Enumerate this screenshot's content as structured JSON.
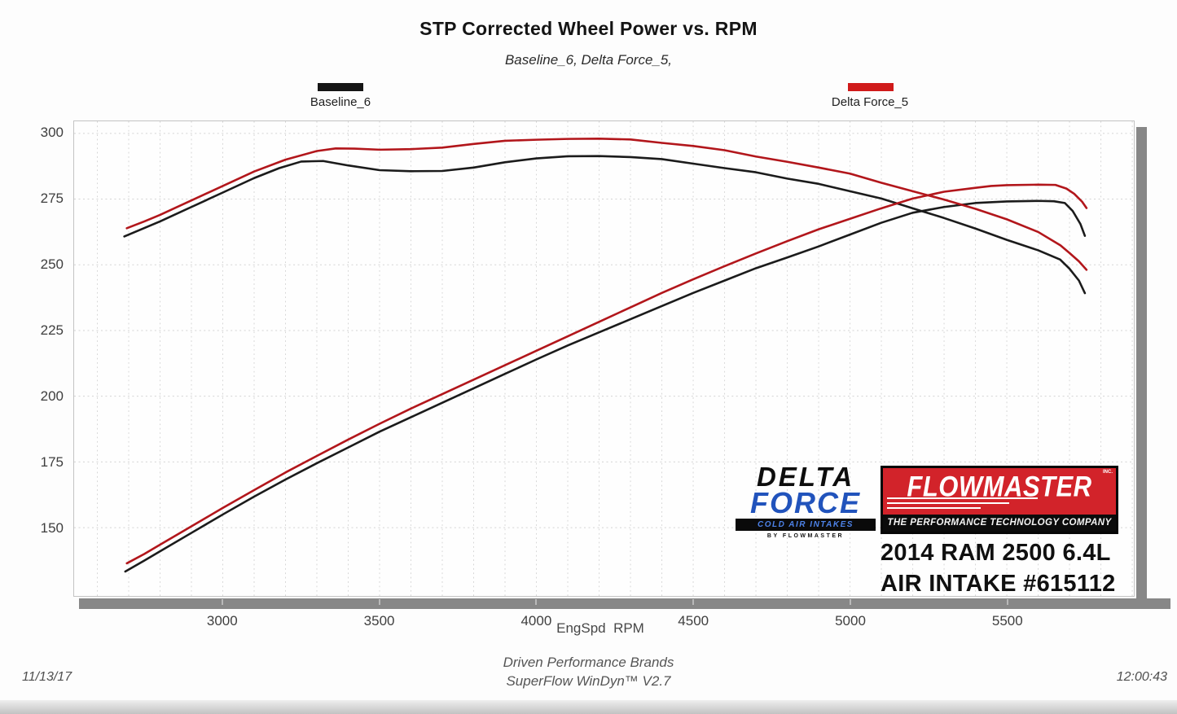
{
  "header": {
    "title": "STP Corrected Wheel Power vs. RPM",
    "subtitle": "Baseline_6, Delta Force_5,"
  },
  "legend": [
    {
      "label": "Baseline_6",
      "color": "#151515"
    },
    {
      "label": "Delta Force_5",
      "color": "#d01a1a"
    }
  ],
  "axes": {
    "x_label": "EngSpd  RPM",
    "x_ticks": [
      3000,
      3500,
      4000,
      4500,
      5000,
      5500
    ],
    "y_ticks": [
      150,
      175,
      200,
      225,
      250,
      275,
      300
    ]
  },
  "footer": {
    "line1": "Driven Performance Brands",
    "line2": "SuperFlow WinDyn™ V2.7",
    "date": "11/13/17",
    "time": "12:00:43"
  },
  "branding": {
    "delta_force": {
      "line1": "DELTA",
      "line2": "FORCE",
      "bar": "COLD AIR INTAKES",
      "sub": "BY FLOWMASTER"
    },
    "flowmaster": {
      "name": "FLOWMASTER",
      "inc": "INC.",
      "tagline": "THE PERFORMANCE TECHNOLOGY COMPANY"
    },
    "vehicle_line1": "2014 RAM 2500 6.4L",
    "vehicle_line2": "AIR INTAKE #615112"
  },
  "chart_data": {
    "type": "line",
    "title": "STP Corrected Wheel Power vs. RPM",
    "subtitle": "Baseline_6, Delta Force_5,",
    "xlabel": "EngSpd RPM",
    "ylabel": "",
    "xlim": [
      2526,
      5905
    ],
    "ylim": [
      124,
      304.6
    ],
    "x_ticks": [
      3000,
      3500,
      4000,
      4500,
      5000,
      5500
    ],
    "y_ticks": [
      150,
      175,
      200,
      225,
      250,
      275,
      300
    ],
    "x_minor_grid_step": 100,
    "grid": "dotted",
    "legend_position": "top",
    "series": [
      {
        "name": "Baseline_6 (upper trace, torque)",
        "color": "#1b1b1b",
        "points": [
          [
            2686,
            260.8
          ],
          [
            2750,
            264
          ],
          [
            2800,
            266.5
          ],
          [
            2900,
            272
          ],
          [
            3000,
            277.5
          ],
          [
            3100,
            283
          ],
          [
            3180,
            286.8
          ],
          [
            3250,
            289.3
          ],
          [
            3320,
            289.5
          ],
          [
            3400,
            287.8
          ],
          [
            3500,
            286
          ],
          [
            3600,
            285.6
          ],
          [
            3700,
            285.7
          ],
          [
            3800,
            287
          ],
          [
            3900,
            289
          ],
          [
            4000,
            290.5
          ],
          [
            4100,
            291.3
          ],
          [
            4200,
            291.4
          ],
          [
            4300,
            291
          ],
          [
            4400,
            290.2
          ],
          [
            4500,
            288.5
          ],
          [
            4600,
            286.8
          ],
          [
            4700,
            285.2
          ],
          [
            4800,
            282.8
          ],
          [
            4900,
            280.8
          ],
          [
            5000,
            278
          ],
          [
            5100,
            275.2
          ],
          [
            5200,
            271.5
          ],
          [
            5300,
            267.8
          ],
          [
            5400,
            263.8
          ],
          [
            5500,
            259.5
          ],
          [
            5600,
            255.5
          ],
          [
            5670,
            252
          ],
          [
            5700,
            248.5
          ],
          [
            5730,
            244
          ],
          [
            5749,
            239.2
          ]
        ]
      },
      {
        "name": "Baseline_6 (lower trace, power)",
        "color": "#1b1b1b",
        "points": [
          [
            2689,
            133.3
          ],
          [
            2750,
            137.5
          ],
          [
            2800,
            141
          ],
          [
            2900,
            148
          ],
          [
            3000,
            155
          ],
          [
            3100,
            161.8
          ],
          [
            3200,
            168.3
          ],
          [
            3300,
            174.5
          ],
          [
            3400,
            180.5
          ],
          [
            3500,
            186.5
          ],
          [
            3600,
            192
          ],
          [
            3700,
            197.5
          ],
          [
            3800,
            203
          ],
          [
            3900,
            208.5
          ],
          [
            4000,
            214
          ],
          [
            4100,
            219.3
          ],
          [
            4200,
            224.3
          ],
          [
            4300,
            229.3
          ],
          [
            4400,
            234.3
          ],
          [
            4500,
            239.3
          ],
          [
            4600,
            244
          ],
          [
            4700,
            248.7
          ],
          [
            4800,
            252.8
          ],
          [
            4900,
            257
          ],
          [
            5000,
            261.5
          ],
          [
            5100,
            266
          ],
          [
            5200,
            269.8
          ],
          [
            5300,
            272
          ],
          [
            5400,
            273.5
          ],
          [
            5500,
            274.1
          ],
          [
            5600,
            274.3
          ],
          [
            5650,
            274.2
          ],
          [
            5685,
            273.5
          ],
          [
            5710,
            270.5
          ],
          [
            5735,
            265.5
          ],
          [
            5749,
            261
          ]
        ]
      },
      {
        "name": "Delta Force_5 (upper trace, torque)",
        "color": "#b2161b",
        "points": [
          [
            2694,
            263.9
          ],
          [
            2750,
            266.5
          ],
          [
            2800,
            269
          ],
          [
            2900,
            274.5
          ],
          [
            3000,
            280
          ],
          [
            3100,
            285.5
          ],
          [
            3200,
            290
          ],
          [
            3300,
            293.3
          ],
          [
            3360,
            294.3
          ],
          [
            3420,
            294.2
          ],
          [
            3500,
            293.8
          ],
          [
            3600,
            294
          ],
          [
            3700,
            294.6
          ],
          [
            3800,
            296
          ],
          [
            3900,
            297.2
          ],
          [
            4000,
            297.6
          ],
          [
            4100,
            297.9
          ],
          [
            4200,
            298
          ],
          [
            4300,
            297.7
          ],
          [
            4400,
            296.4
          ],
          [
            4500,
            295.2
          ],
          [
            4600,
            293.6
          ],
          [
            4700,
            291.2
          ],
          [
            4800,
            289.2
          ],
          [
            4900,
            287
          ],
          [
            5000,
            284.7
          ],
          [
            5100,
            281.2
          ],
          [
            5200,
            278
          ],
          [
            5300,
            274.8
          ],
          [
            5400,
            271.3
          ],
          [
            5500,
            267.3
          ],
          [
            5600,
            262.5
          ],
          [
            5671,
            257.4
          ],
          [
            5700,
            254.5
          ],
          [
            5730,
            251.3
          ],
          [
            5754,
            248.1
          ]
        ]
      },
      {
        "name": "Delta Force_5 (lower trace, power)",
        "color": "#b2161b",
        "points": [
          [
            2694,
            136.4
          ],
          [
            2750,
            140
          ],
          [
            2800,
            143.5
          ],
          [
            2900,
            150.5
          ],
          [
            3000,
            157.5
          ],
          [
            3100,
            164.3
          ],
          [
            3200,
            171
          ],
          [
            3300,
            177.3
          ],
          [
            3400,
            183.5
          ],
          [
            3500,
            189.5
          ],
          [
            3600,
            195.3
          ],
          [
            3700,
            200.8
          ],
          [
            3800,
            206.3
          ],
          [
            3900,
            211.8
          ],
          [
            4000,
            217.3
          ],
          [
            4100,
            222.8
          ],
          [
            4200,
            228.3
          ],
          [
            4300,
            233.8
          ],
          [
            4400,
            239.3
          ],
          [
            4500,
            244.5
          ],
          [
            4600,
            249.5
          ],
          [
            4700,
            254.3
          ],
          [
            4800,
            259
          ],
          [
            4900,
            263.5
          ],
          [
            5000,
            267.5
          ],
          [
            5100,
            271.5
          ],
          [
            5200,
            275.2
          ],
          [
            5300,
            277.8
          ],
          [
            5400,
            279.3
          ],
          [
            5450,
            280
          ],
          [
            5500,
            280.3
          ],
          [
            5600,
            280.5
          ],
          [
            5655,
            280.4
          ],
          [
            5690,
            279
          ],
          [
            5715,
            277
          ],
          [
            5740,
            274
          ],
          [
            5754,
            271.6
          ]
        ]
      }
    ]
  }
}
